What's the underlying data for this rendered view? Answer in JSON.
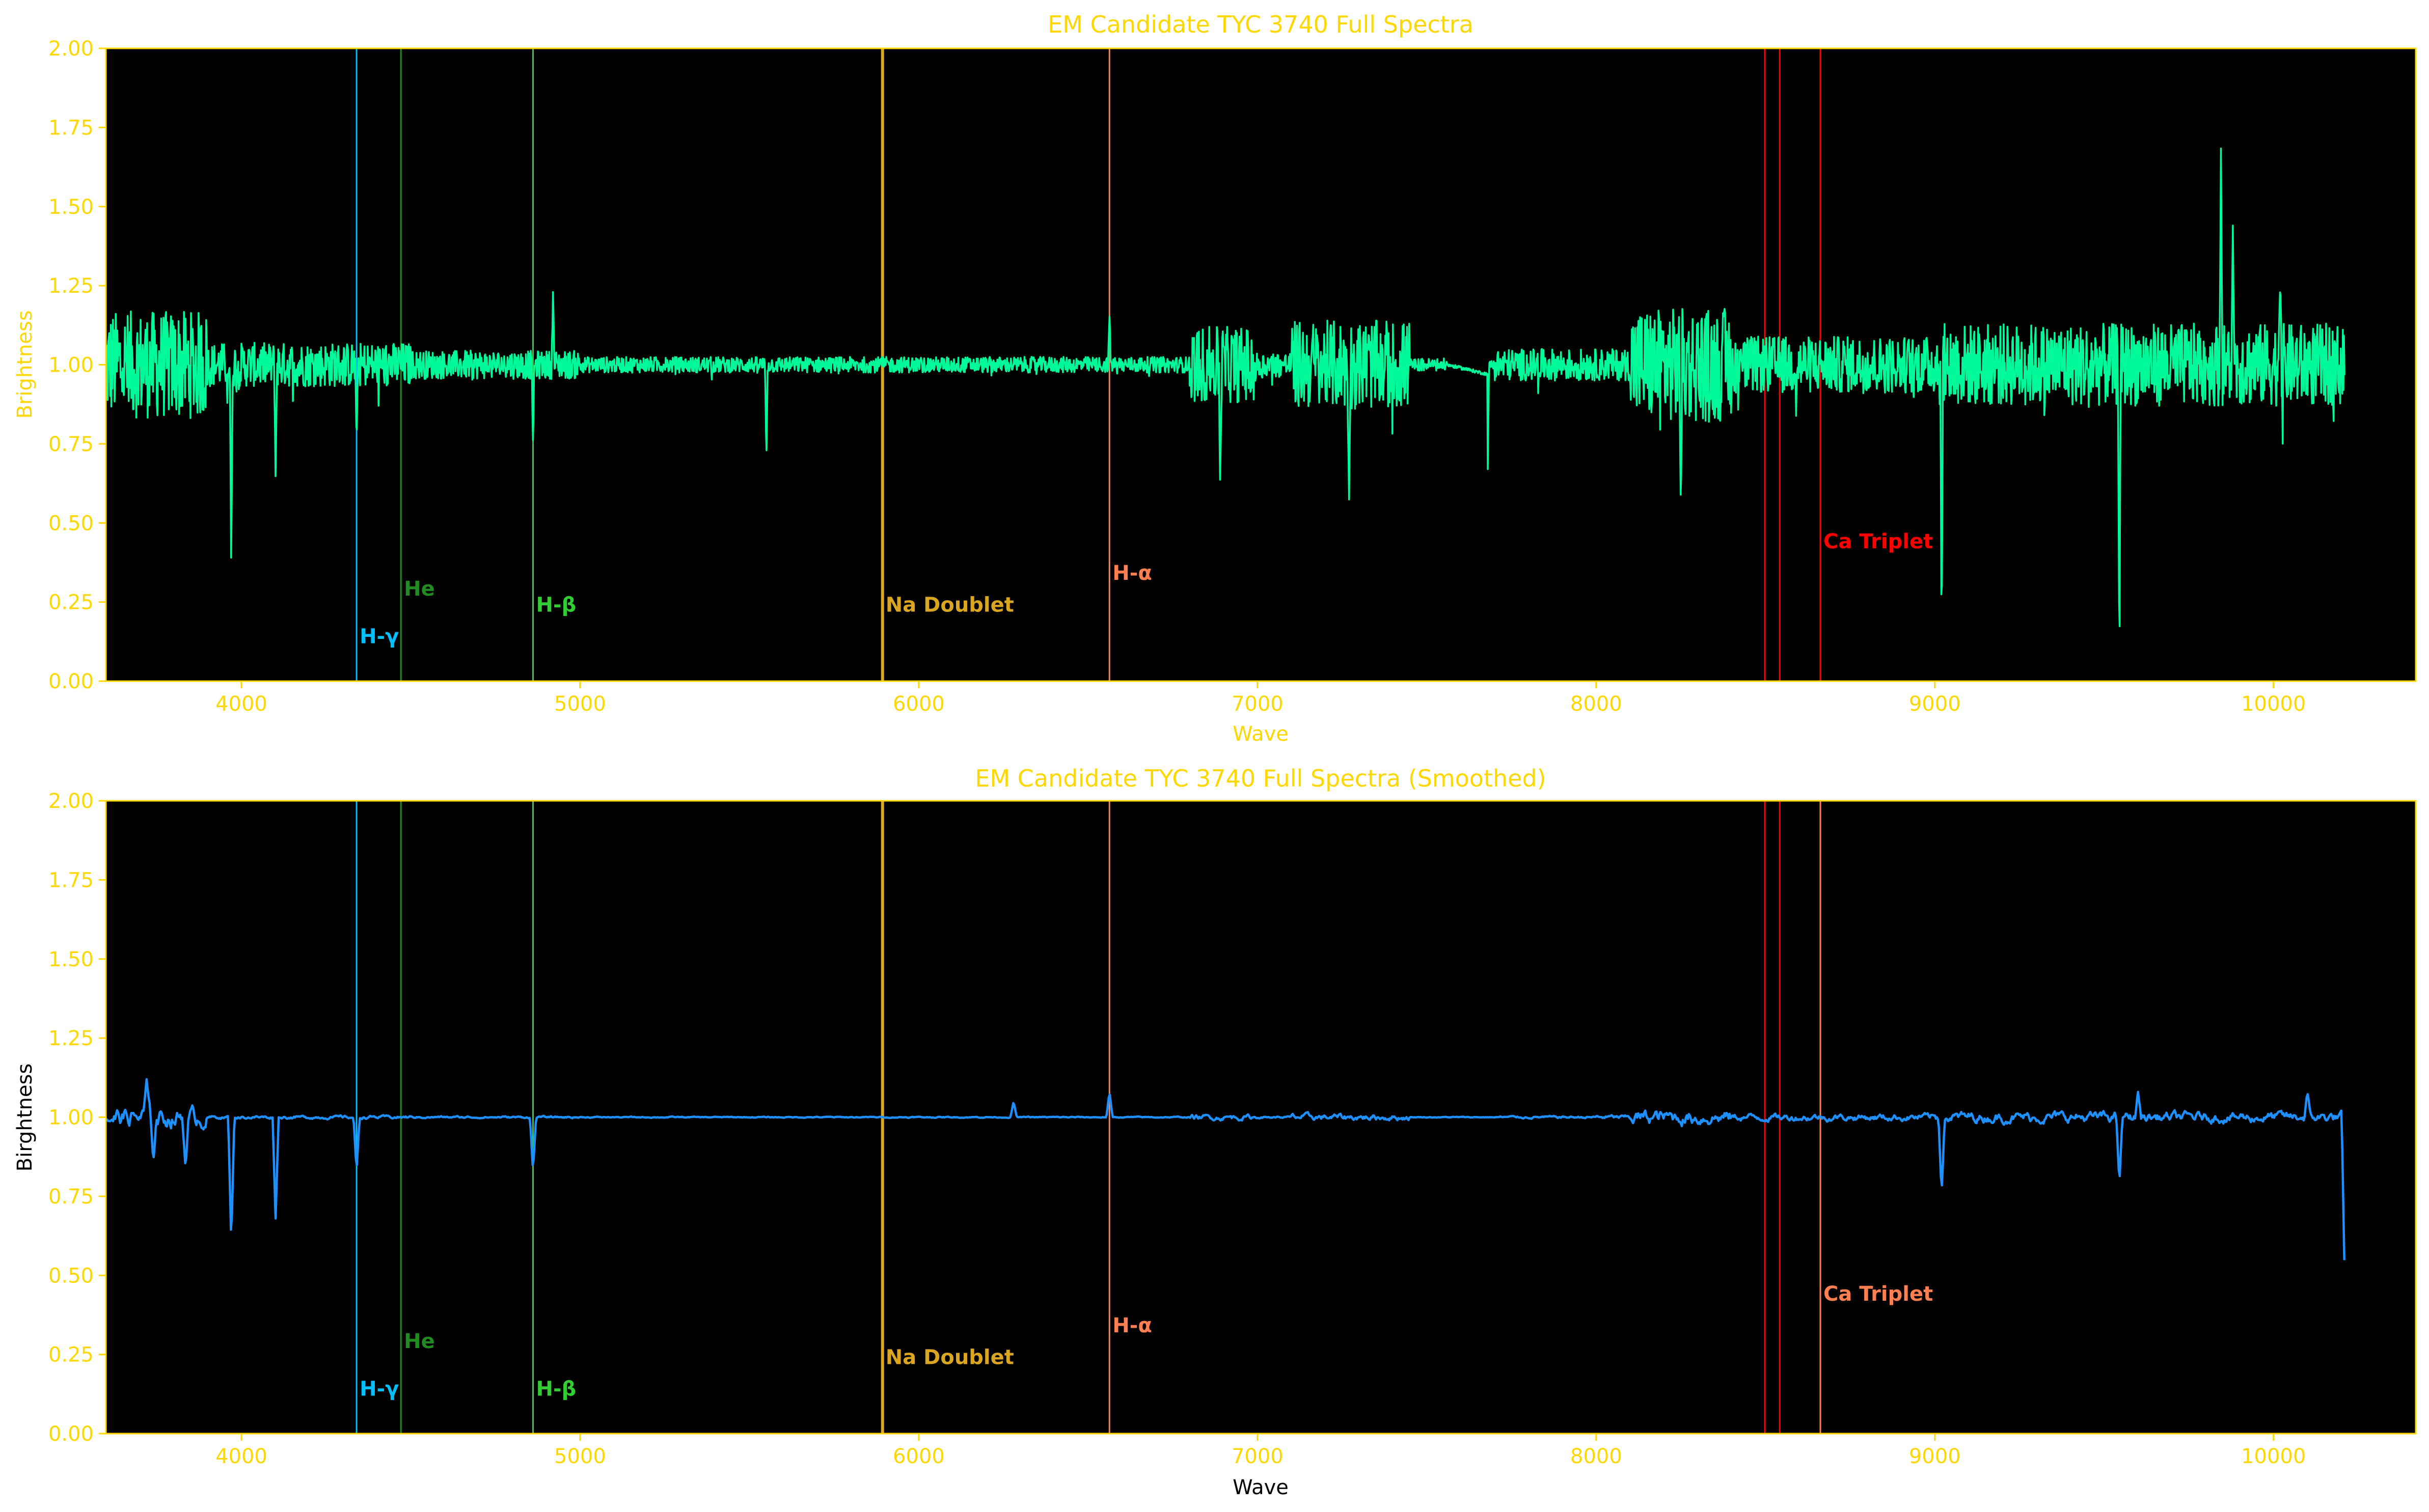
{
  "chart_data": [
    {
      "type": "line",
      "title": "EM Candidate TYC 3740 Full Spectra",
      "xlabel": "Wave",
      "ylabel": "Brightness",
      "xlim": [
        3600,
        10420
      ],
      "ylim": [
        0,
        2.0
      ],
      "xticks": [
        "4000",
        "5000",
        "6000",
        "7000",
        "8000",
        "9000",
        "10000"
      ],
      "xtick_values": [
        4000,
        5000,
        6000,
        7000,
        8000,
        9000,
        10000
      ],
      "yticks": [
        "0.00",
        "0.25",
        "0.50",
        "0.75",
        "1.00",
        "1.25",
        "1.50",
        "1.75",
        "2.00"
      ],
      "ytick_values": [
        0,
        0.25,
        0.5,
        0.75,
        1.0,
        1.25,
        1.5,
        1.75,
        2.0
      ],
      "grid": false,
      "background": "#000000",
      "accent_color": "#FFD700",
      "series": [
        {
          "color": "#00FA9A",
          "x_range": [
            3600,
            10210
          ],
          "baseline": 1.0,
          "features": [
            {
              "x": 3970,
              "y": 0.32
            },
            {
              "x": 4101,
              "y": 0.63
            },
            {
              "x": 4340,
              "y": 0.74
            },
            {
              "x": 4861,
              "y": 0.75
            },
            {
              "x": 4920,
              "y": 1.23
            },
            {
              "x": 5550,
              "y": 0.7
            },
            {
              "x": 6563,
              "y": 1.16
            },
            {
              "x": 6890,
              "y": 0.6
            },
            {
              "x": 7270,
              "y": 0.54
            },
            {
              "x": 7680,
              "y": 0.67
            },
            {
              "x": 8250,
              "y": 0.55
            },
            {
              "x": 9020,
              "y": 0.1
            },
            {
              "x": 9545,
              "y": 0.03
            },
            {
              "x": 9845,
              "y": 1.72
            },
            {
              "x": 9880,
              "y": 1.44
            },
            {
              "x": 10020,
              "y": 1.27
            }
          ]
        }
      ],
      "lines": [
        {
          "label": "H-γ",
          "x": 4340,
          "color": "#00BFFF",
          "label_y": 0.12
        },
        {
          "label": "He",
          "x": 4471,
          "color": "#228B22",
          "label_y": 0.27
        },
        {
          "label": "H-β",
          "x": 4861,
          "color": "#32CD32",
          "label_y": 0.22
        },
        {
          "label": "Na Doublet",
          "x": 5893,
          "color": "#DAA520",
          "label_y": 0.22
        },
        {
          "label": "H-α",
          "x": 6563,
          "color": "#FF7F50",
          "label_y": 0.32
        },
        {
          "label": "",
          "x": 8498,
          "color": "#FF0000"
        },
        {
          "label": "",
          "x": 8542,
          "color": "#FF0000"
        },
        {
          "label": "Ca Triplet",
          "x": 8662,
          "color": "#FF0000",
          "label_y": 0.42
        }
      ]
    },
    {
      "type": "line",
      "title": "EM Candidate TYC 3740 Full Spectra (Smoothed)",
      "xlabel": "Wave",
      "ylabel": "Birghtness",
      "xlim": [
        3600,
        10420
      ],
      "ylim": [
        0,
        2.0
      ],
      "xticks": [
        "4000",
        "5000",
        "6000",
        "7000",
        "8000",
        "9000",
        "10000"
      ],
      "xtick_values": [
        4000,
        5000,
        6000,
        7000,
        8000,
        9000,
        10000
      ],
      "yticks": [
        "0.00",
        "0.25",
        "0.50",
        "0.75",
        "1.00",
        "1.25",
        "1.50",
        "1.75",
        "2.00"
      ],
      "ytick_values": [
        0,
        0.25,
        0.5,
        0.75,
        1.0,
        1.25,
        1.5,
        1.75,
        2.0
      ],
      "grid": false,
      "background": "#000000",
      "accent_color": "#FFD700",
      "series": [
        {
          "color": "#1E90FF",
          "x_range": [
            3600,
            10210
          ],
          "baseline": 1.0,
          "features": [
            {
              "x": 3720,
              "y": 1.12
            },
            {
              "x": 3740,
              "y": 0.86
            },
            {
              "x": 3835,
              "y": 0.84
            },
            {
              "x": 3970,
              "y": 0.6
            },
            {
              "x": 4101,
              "y": 0.68
            },
            {
              "x": 4340,
              "y": 0.83
            },
            {
              "x": 4861,
              "y": 0.83
            },
            {
              "x": 6280,
              "y": 1.05
            },
            {
              "x": 6563,
              "y": 1.08
            },
            {
              "x": 9020,
              "y": 0.76
            },
            {
              "x": 9545,
              "y": 0.79
            },
            {
              "x": 9600,
              "y": 1.08
            },
            {
              "x": 10100,
              "y": 1.08
            },
            {
              "x": 10210,
              "y": 0.49
            }
          ]
        }
      ],
      "lines": [
        {
          "label": "H-γ",
          "x": 4340,
          "color": "#00BFFF",
          "label_y": 0.12
        },
        {
          "label": "He",
          "x": 4471,
          "color": "#228B22",
          "label_y": 0.27
        },
        {
          "label": "H-β",
          "x": 4861,
          "color": "#32CD32",
          "label_y": 0.12
        },
        {
          "label": "Na Doublet",
          "x": 5893,
          "color": "#DAA520",
          "label_y": 0.22
        },
        {
          "label": "H-α",
          "x": 6563,
          "color": "#FF7F50",
          "label_y": 0.32
        },
        {
          "label": "",
          "x": 8498,
          "color": "#FF0000"
        },
        {
          "label": "",
          "x": 8542,
          "color": "#FF0000"
        },
        {
          "label": "Ca Triplet",
          "x": 8662,
          "color": "#FF7F50",
          "label_y": 0.42
        }
      ]
    }
  ]
}
